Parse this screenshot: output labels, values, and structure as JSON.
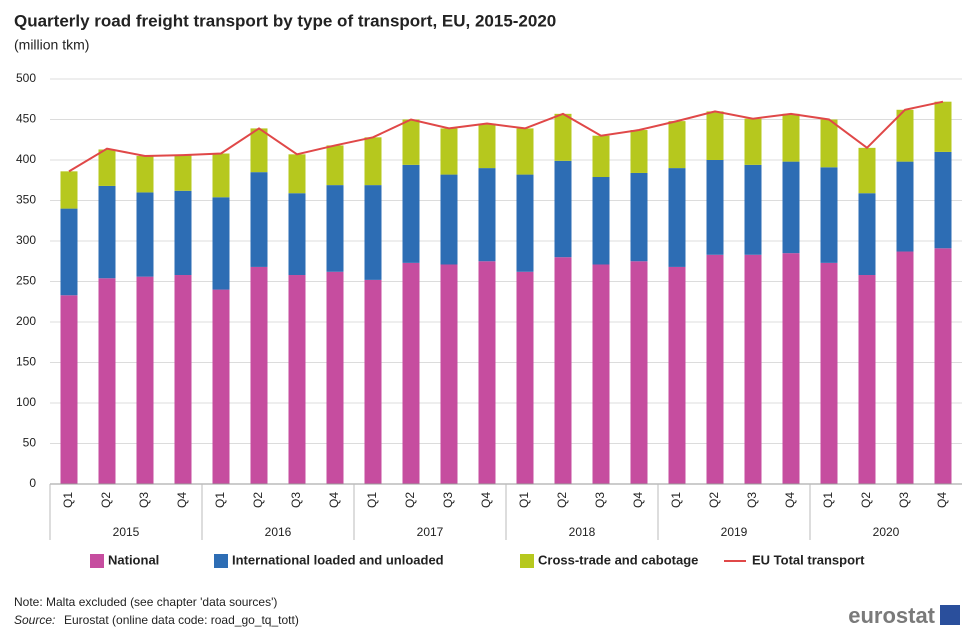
{
  "chart_data": {
    "type": "bar",
    "stacked": true,
    "title": "Quarterly road freight transport by type of transport, EU, 2015-2020",
    "subtitle": "(million tkm)",
    "categories": [
      "Q1",
      "Q2",
      "Q3",
      "Q4",
      "Q1",
      "Q2",
      "Q3",
      "Q4",
      "Q1",
      "Q2",
      "Q3",
      "Q4",
      "Q1",
      "Q2",
      "Q3",
      "Q4",
      "Q1",
      "Q2",
      "Q3",
      "Q4",
      "Q1",
      "Q2",
      "Q3",
      "Q4"
    ],
    "groups": [
      "2015",
      "2016",
      "2017",
      "2018",
      "2019",
      "2020"
    ],
    "series": [
      {
        "name": "National",
        "type": "bar",
        "color": "#c64d9f",
        "values": [
          233,
          254,
          256,
          258,
          240,
          268,
          258,
          262,
          252,
          273,
          271,
          275,
          262,
          280,
          271,
          275,
          268,
          283,
          283,
          285,
          273,
          258,
          287,
          291
        ]
      },
      {
        "name": "International loaded and unloaded",
        "type": "bar",
        "color": "#2d6db4",
        "values": [
          107,
          114,
          104,
          104,
          114,
          117,
          101,
          107,
          117,
          121,
          111,
          115,
          120,
          119,
          108,
          109,
          122,
          117,
          111,
          113,
          118,
          101,
          111,
          119
        ]
      },
      {
        "name": "Cross-trade and cabotage",
        "type": "bar",
        "color": "#b6c81e",
        "values": [
          46,
          45,
          45,
          44,
          54,
          54,
          48,
          49,
          59,
          56,
          57,
          55,
          57,
          58,
          51,
          53,
          58,
          60,
          57,
          59,
          59,
          56,
          64,
          62
        ]
      },
      {
        "name": "EU Total transport",
        "type": "line",
        "color": "#e04848",
        "values": [
          386,
          414,
          405,
          406,
          408,
          439,
          407,
          418,
          428,
          450,
          439,
          445,
          439,
          457,
          430,
          437,
          448,
          460,
          451,
          457,
          450,
          415,
          462,
          472
        ]
      }
    ],
    "ylim": [
      0,
      500
    ],
    "yticks": [
      0,
      50,
      100,
      150,
      200,
      250,
      300,
      350,
      400,
      450,
      500
    ],
    "grid": true,
    "note": "Note: Malta excluded (see chapter 'data sources')",
    "source_label": "Source:",
    "source_text": "Eurostat (online data code: road_go_tq_tott)",
    "logo": "eurostat"
  }
}
